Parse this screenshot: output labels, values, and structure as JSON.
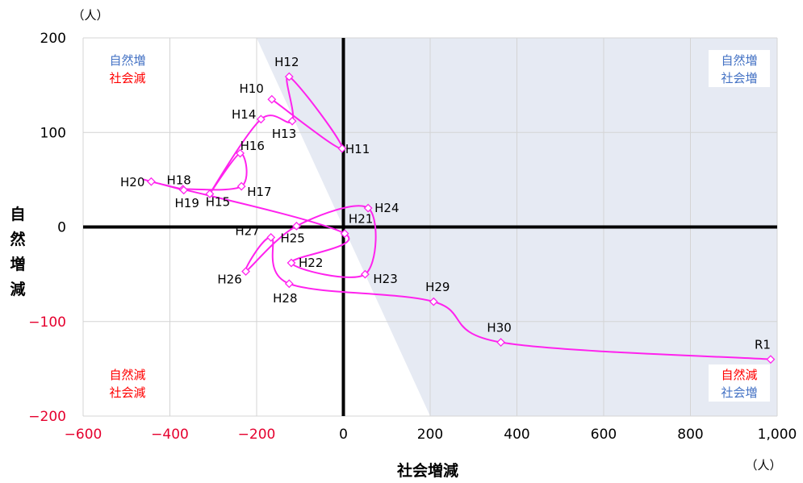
{
  "chart_data": {
    "type": "scatter",
    "xlabel": "社会増減",
    "ylabel": "自然増減",
    "x_unit": "（人）",
    "y_unit": "（人）",
    "xlim": [
      -600,
      1000
    ],
    "ylim": [
      -200,
      200
    ],
    "x_ticks": [
      {
        "value": -600,
        "label": "−600"
      },
      {
        "value": -400,
        "label": "−400"
      },
      {
        "value": -200,
        "label": "−200"
      },
      {
        "value": 0,
        "label": "0"
      },
      {
        "value": 200,
        "label": "200"
      },
      {
        "value": 400,
        "label": "400"
      },
      {
        "value": 600,
        "label": "600"
      },
      {
        "value": 800,
        "label": "800"
      },
      {
        "value": 1000,
        "label": "1,000"
      }
    ],
    "y_ticks": [
      {
        "value": 200,
        "label": "200"
      },
      {
        "value": 100,
        "label": "100"
      },
      {
        "value": 0,
        "label": "0"
      },
      {
        "value": -100,
        "label": "−100"
      },
      {
        "value": -200,
        "label": "−200"
      }
    ],
    "grid": true,
    "shaded_region": "社会増減 + 自然増減 > 0",
    "quadrant_labels": {
      "top_left": [
        "自然増",
        "社会減"
      ],
      "top_right": [
        "自然増",
        "社会増"
      ],
      "bottom_left": [
        "自然減",
        "社会減"
      ],
      "bottom_right": [
        "自然減",
        "社会増"
      ]
    },
    "colors": {
      "line": "#ff22ee",
      "shade": "#e6eaf3",
      "increase_text": "#4472c4",
      "decrease_text": "#ff0000",
      "negative_tick": "#e5002e"
    },
    "points": [
      {
        "label": "H10",
        "x": -165,
        "y": 135
      },
      {
        "label": "H11",
        "x": -3,
        "y": 83
      },
      {
        "label": "H12",
        "x": -125,
        "y": 159
      },
      {
        "label": "H13",
        "x": -118,
        "y": 112
      },
      {
        "label": "H14",
        "x": -190,
        "y": 114
      },
      {
        "label": "H15",
        "x": -308,
        "y": 35
      },
      {
        "label": "H16",
        "x": -238,
        "y": 78
      },
      {
        "label": "H17",
        "x": -235,
        "y": 43
      },
      {
        "label": "H18",
        "x": -370,
        "y": 40
      },
      {
        "label": "H19",
        "x": -368,
        "y": 39
      },
      {
        "label": "H20",
        "x": -443,
        "y": 48
      },
      {
        "label": "H21",
        "x": 3,
        "y": -7
      },
      {
        "label": "H22",
        "x": -120,
        "y": -38
      },
      {
        "label": "H23",
        "x": 50,
        "y": -50
      },
      {
        "label": "H24",
        "x": 57,
        "y": 20
      },
      {
        "label": "H25",
        "x": -108,
        "y": 1
      },
      {
        "label": "H26",
        "x": -225,
        "y": -47
      },
      {
        "label": "H27",
        "x": -167,
        "y": -11
      },
      {
        "label": "H28",
        "x": -125,
        "y": -60
      },
      {
        "label": "H29",
        "x": 208,
        "y": -79
      },
      {
        "label": "H30",
        "x": 363,
        "y": -122
      },
      {
        "label": "R1",
        "x": 985,
        "y": -140
      }
    ]
  }
}
